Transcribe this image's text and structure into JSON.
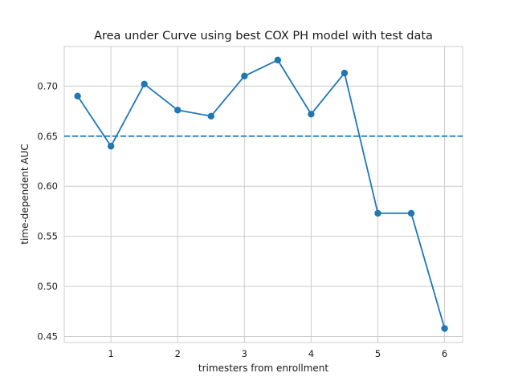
{
  "chart_data": {
    "type": "line",
    "title": "Area under Curve using best COX PH model with test data",
    "xlabel": "trimesters from enrollment",
    "ylabel": "time-dependent AUC",
    "xlim": [
      0.3,
      6.27
    ],
    "ylim": [
      0.444,
      0.7395
    ],
    "xticks": [
      1,
      2,
      3,
      4,
      5,
      6
    ],
    "xtick_labels": [
      "1",
      "2",
      "3",
      "4",
      "5",
      "6"
    ],
    "yticks": [
      0.45,
      0.5,
      0.55,
      0.6,
      0.65,
      0.7
    ],
    "ytick_labels": [
      "0.45",
      "0.50",
      "0.55",
      "0.60",
      "0.65",
      "0.70"
    ],
    "grid": true,
    "series": [
      {
        "x": [
          0.5,
          1.0,
          1.5,
          2.0,
          2.5,
          3.0,
          3.5,
          4.0,
          4.5,
          5.0,
          5.5,
          6.0
        ],
        "values": [
          0.69,
          0.64,
          0.702,
          0.676,
          0.67,
          0.71,
          0.726,
          0.672,
          0.713,
          0.573,
          0.573,
          0.458
        ],
        "color": "#1f77b4",
        "marker": "circle"
      }
    ],
    "reference_lines": [
      {
        "orientation": "horizontal",
        "y": 0.65,
        "style": "dashed",
        "color": "#1f77b4"
      }
    ]
  }
}
